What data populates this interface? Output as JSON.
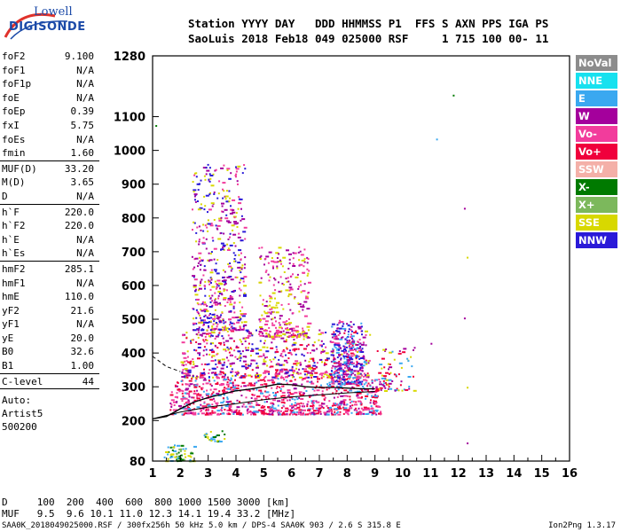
{
  "logo": {
    "line1": "Lowell",
    "line2": "DIGISONDE"
  },
  "header": {
    "line1": "Station YYYY DAY   DDD HHMMSS P1  FFS S AXN PPS IGA PS",
    "line2": "SaoLuis 2018 Feb18 049 025000 RSF     1 715 100 00- 11"
  },
  "params": [
    {
      "name": "foF2",
      "value": "9.100"
    },
    {
      "name": "foF1",
      "value": "N/A"
    },
    {
      "name": "foF1p",
      "value": "N/A"
    },
    {
      "name": "foE",
      "value": "N/A"
    },
    {
      "name": "foEp",
      "value": "0.39"
    },
    {
      "name": "fxI",
      "value": "5.75"
    },
    {
      "name": "foEs",
      "value": "N/A"
    },
    {
      "name": "fmin",
      "value": "1.60",
      "sep": true
    },
    {
      "name": "MUF(D)",
      "value": "33.20"
    },
    {
      "name": "M(D)",
      "value": "3.65"
    },
    {
      "name": "D",
      "value": "N/A",
      "sep": true
    },
    {
      "name": "h`F",
      "value": "220.0"
    },
    {
      "name": "h`F2",
      "value": "220.0"
    },
    {
      "name": "h`E",
      "value": "N/A"
    },
    {
      "name": "h`Es",
      "value": "N/A",
      "sep": true
    },
    {
      "name": "hmF2",
      "value": "285.1"
    },
    {
      "name": "hmF1",
      "value": "N/A"
    },
    {
      "name": "hmE",
      "value": "110.0"
    },
    {
      "name": "yF2",
      "value": "21.6"
    },
    {
      "name": "yF1",
      "value": "N/A"
    },
    {
      "name": "yE",
      "value": "20.0"
    },
    {
      "name": "B0",
      "value": "32.6"
    },
    {
      "name": "B1",
      "value": "1.00",
      "sep": true
    },
    {
      "name": "C-level",
      "value": "44",
      "sep": true
    }
  ],
  "artist": [
    "Auto:",
    "Artist5",
    "500200"
  ],
  "legend": [
    {
      "label": "NoVal",
      "color": "#8c8c8c"
    },
    {
      "label": "NNE",
      "color": "#17e1ef"
    },
    {
      "label": "E",
      "color": "#3aa8f0"
    },
    {
      "label": "W",
      "color": "#a4009c"
    },
    {
      "label": "Vo-",
      "color": "#f23c9c"
    },
    {
      "label": "Vo+",
      "color": "#f0003c"
    },
    {
      "label": "SSW",
      "color": "#f4b0a8"
    },
    {
      "label": "X-",
      "color": "#007a00"
    },
    {
      "label": "X+",
      "color": "#7cb85c"
    },
    {
      "label": "SSE",
      "color": "#d8d800"
    },
    {
      "label": "NNW",
      "color": "#2a1ad8"
    }
  ],
  "footer": {
    "d_line": "D     100  200  400  600  800 1000 1500 3000 [km]",
    "muf_line": "MUF   9.5  9.6 10.1 11.0 12.3 14.1 19.4 33.2 [MHz]",
    "file_line": "SAA0K_2018049025000.RSF / 300fx256h 50 kHz 5.0 km / DPS-4 SAA0K 903 / 2.6 S 315.8 E",
    "version": "Ion2Png 1.3.17"
  },
  "chart_data": {
    "type": "scatter",
    "title": "",
    "xlabel": "",
    "ylabel": "",
    "xlim": [
      1,
      16
    ],
    "ylim": [
      80,
      1280
    ],
    "x_ticks": [
      "1",
      "2",
      "3",
      "4",
      "5",
      "6",
      "7",
      "8",
      "9",
      "10",
      "11",
      "12",
      "13",
      "14",
      "15",
      "16"
    ],
    "y_ticks": [
      {
        "v": 80,
        "label": "80"
      },
      {
        "v": 200,
        "label": "200"
      },
      {
        "v": 300,
        "label": "300"
      },
      {
        "v": 400,
        "label": "400"
      },
      {
        "v": 500,
        "label": "500"
      },
      {
        "v": 600,
        "label": "600"
      },
      {
        "v": 700,
        "label": "700"
      },
      {
        "v": 800,
        "label": "800"
      },
      {
        "v": 900,
        "label": "900"
      },
      {
        "v": 1000,
        "label": "1000"
      },
      {
        "v": 1100,
        "label": "1100"
      },
      {
        "v": 1280,
        "label": "1280"
      }
    ],
    "grid": false,
    "legend_placement": "right",
    "trace_upper": [
      [
        1.0,
        205
      ],
      [
        1.5,
        212
      ],
      [
        2.0,
        235
      ],
      [
        2.5,
        255
      ],
      [
        3.0,
        268
      ],
      [
        3.5,
        278
      ],
      [
        4.0,
        288
      ],
      [
        4.5,
        293
      ],
      [
        5.0,
        300
      ],
      [
        5.5,
        308
      ],
      [
        6.0,
        306
      ],
      [
        6.5,
        300
      ],
      [
        7.0,
        298
      ],
      [
        7.5,
        298
      ],
      [
        8.0,
        296
      ],
      [
        8.5,
        294
      ],
      [
        9.0,
        294
      ]
    ],
    "trace_lower": [
      [
        1.0,
        205
      ],
      [
        2.0,
        225
      ],
      [
        3.0,
        240
      ],
      [
        4.0,
        250
      ],
      [
        5.0,
        262
      ],
      [
        6.0,
        270
      ],
      [
        7.0,
        276
      ],
      [
        8.0,
        282
      ],
      [
        9.0,
        286
      ]
    ],
    "trace_dashed": [
      [
        1.0,
        390
      ],
      [
        1.5,
        360
      ],
      [
        2.0,
        345
      ]
    ],
    "echo_clusters": [
      {
        "x": [
          1.6,
          9.2
        ],
        "y": [
          220,
          330
        ],
        "n": 900,
        "colors": [
          "#f0003c",
          "#f23c9c",
          "#a4009c",
          "#3aa8f0",
          "#f0003c",
          "#f23c9c"
        ]
      },
      {
        "x": [
          2.0,
          8.8
        ],
        "y": [
          330,
          470
        ],
        "n": 700,
        "colors": [
          "#a4009c",
          "#f23c9c",
          "#f0003c",
          "#2a1ad8",
          "#d8d800"
        ]
      },
      {
        "x": [
          2.4,
          4.3
        ],
        "y": [
          470,
          960
        ],
        "n": 520,
        "colors": [
          "#a4009c",
          "#f23c9c",
          "#d8d800",
          "#2a1ad8"
        ]
      },
      {
        "x": [
          4.8,
          6.6
        ],
        "y": [
          450,
          720
        ],
        "n": 260,
        "colors": [
          "#a4009c",
          "#f23c9c",
          "#d8d800"
        ]
      },
      {
        "x": [
          7.4,
          8.6
        ],
        "y": [
          310,
          500
        ],
        "n": 260,
        "colors": [
          "#a4009c",
          "#2a1ad8",
          "#f23c9c",
          "#3aa8f0"
        ]
      },
      {
        "x": [
          9.0,
          10.4
        ],
        "y": [
          290,
          420
        ],
        "n": 80,
        "colors": [
          "#f0003c",
          "#3aa8f0",
          "#d8d800",
          "#a4009c"
        ]
      },
      {
        "x": [
          1.4,
          2.5
        ],
        "y": [
          82,
          130
        ],
        "n": 60,
        "colors": [
          "#7cb85c",
          "#3aa8f0",
          "#d8d800",
          "#007a00"
        ]
      },
      {
        "x": [
          2.8,
          3.6
        ],
        "y": [
          140,
          175
        ],
        "n": 25,
        "colors": [
          "#3aa8f0",
          "#d8d800",
          "#007a00"
        ]
      }
    ],
    "isolated_points": [
      {
        "x": 11.8,
        "y": 1165,
        "c": "#007a00"
      },
      {
        "x": 11.2,
        "y": 1035,
        "c": "#3aa8f0"
      },
      {
        "x": 12.2,
        "y": 830,
        "c": "#a4009c"
      },
      {
        "x": 12.3,
        "y": 685,
        "c": "#d8d800"
      },
      {
        "x": 12.2,
        "y": 505,
        "c": "#a4009c"
      },
      {
        "x": 12.3,
        "y": 135,
        "c": "#a4009c"
      },
      {
        "x": 12.3,
        "y": 300,
        "c": "#d8d800"
      },
      {
        "x": 11.0,
        "y": 430,
        "c": "#a4009c"
      },
      {
        "x": 1.1,
        "y": 1075,
        "c": "#007a00"
      }
    ]
  }
}
